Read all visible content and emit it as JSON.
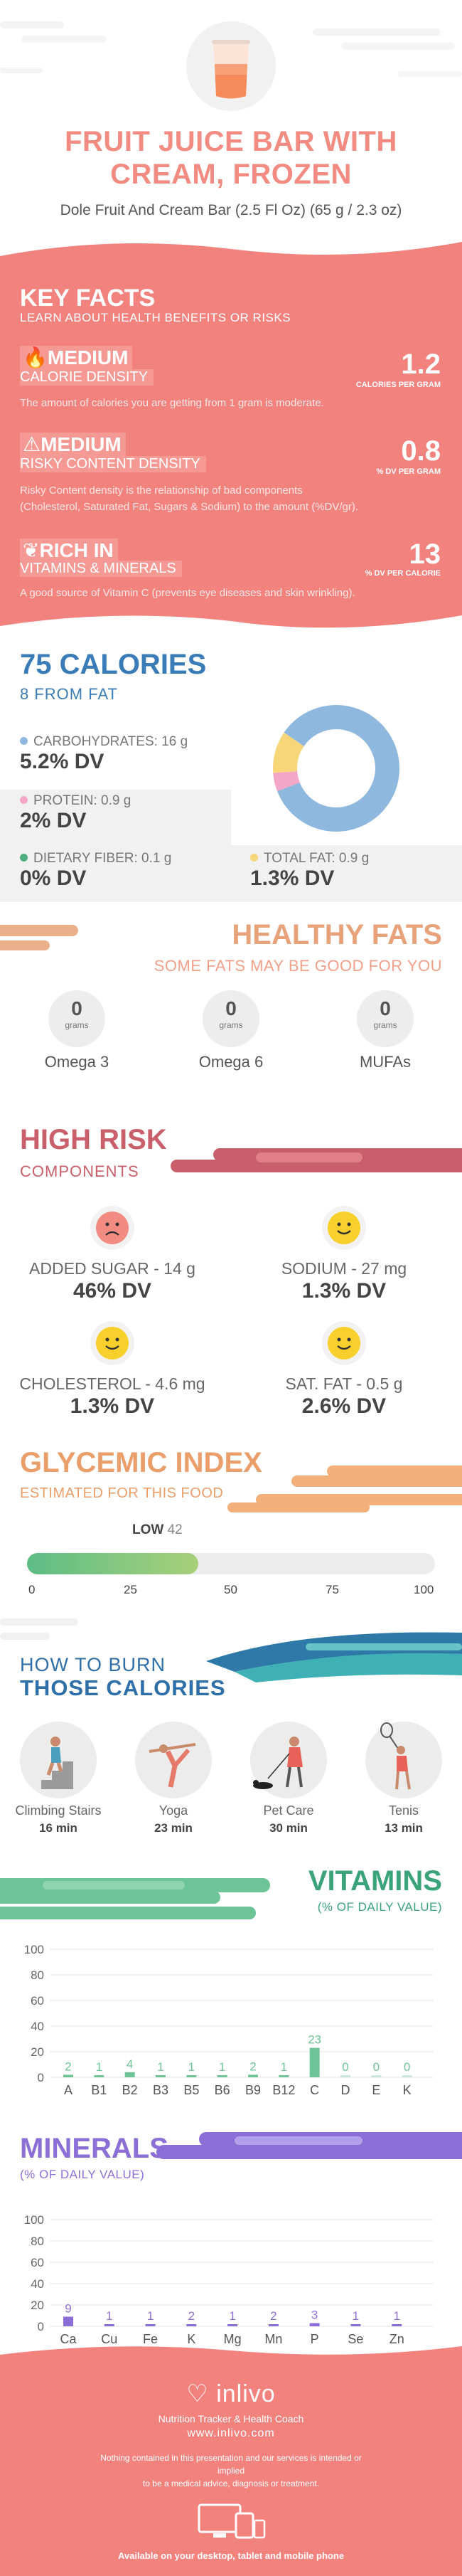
{
  "header": {
    "title_line1": "FRUIT JUICE BAR WITH",
    "title_line2": "CREAM, FROZEN",
    "subtitle": "Dole Fruit And Cream Bar (2.5 Fl Oz) (65 g / 2.3 oz)"
  },
  "key_facts": {
    "title": "KEY FACTS",
    "subtitle": "LEARN ABOUT HEALTH BENEFITS OR RISKS",
    "items": [
      {
        "level": "MEDIUM",
        "name": "CALORIE DENSITY",
        "value": "1.2",
        "unit": "CALORIES PER GRAM",
        "description": "The amount of calories you are getting from 1 gram is moderate.",
        "icon": "flame-icon"
      },
      {
        "level": "MEDIUM",
        "name": "RISKY CONTENT DENSITY",
        "value": "0.8",
        "unit": "% DV PER GRAM",
        "description_line1": "Risky Content density is the relationship of bad components",
        "description_line2": "(Cholesterol, Saturated Fat, Sugars & Sodium) to the amount (%DV/gr).",
        "icon": "warning-icon"
      },
      {
        "level": "RICH  IN",
        "name": "VITAMINS & MINERALS",
        "value": "13",
        "unit": "% DV PER CALORIE",
        "description": "A good source of Vitamin C (prevents eye diseases and skin wrinkling).",
        "icon": "leaf-icon"
      }
    ]
  },
  "calories": {
    "title": "75 CALORIES",
    "subtitle": "8 FROM FAT",
    "nutrients": [
      {
        "label": "CARBOHYDRATES: 16 g",
        "dv": "5.2% DV",
        "color": "#8fb8de"
      },
      {
        "label": "PROTEIN: 0.9 g",
        "dv": "2% DV",
        "color": "#f4a6c6"
      },
      {
        "label": "DIETARY FIBER: 0.1 g",
        "dv": "0% DV",
        "color": "#4caf7d"
      },
      {
        "label": "TOTAL FAT: 0.9 g",
        "dv": "1.3% DV",
        "color": "#f7d67a"
      }
    ],
    "donut": {
      "carbs": 64,
      "protein": 3.6,
      "fat": 8.1,
      "colors": {
        "carbs": "#8fb8de",
        "protein": "#f4a6c6",
        "fat": "#f7d67a"
      }
    }
  },
  "healthy_fats": {
    "title": "HEALTHY FATS",
    "subtitle": "SOME FATS MAY BE GOOD FOR YOU",
    "items": [
      {
        "value": "0",
        "unit": "grams",
        "name": "Omega 3"
      },
      {
        "value": "0",
        "unit": "grams",
        "name": "Omega 6"
      },
      {
        "value": "0",
        "unit": "grams",
        "name": "MUFAs"
      }
    ]
  },
  "high_risk": {
    "title": "HIGH RISK",
    "subtitle": "COMPONENTS",
    "items": [
      {
        "name": "ADDED SUGAR - 14 g",
        "dv": "46% DV",
        "face": "sad-face-icon"
      },
      {
        "name": "SODIUM - 27 mg",
        "dv": "1.3% DV",
        "face": "smile-face-icon"
      },
      {
        "name": "CHOLESTEROL - 4.6 mg",
        "dv": "1.3% DV",
        "face": "smile-face-icon"
      },
      {
        "name": "SAT. FAT - 0.5 g",
        "dv": "2.6% DV",
        "face": "smile-face-icon"
      }
    ]
  },
  "glycemic": {
    "title": "GLYCEMIC INDEX",
    "subtitle": "ESTIMATED FOR THIS FOOD",
    "level": "LOW",
    "value": 42,
    "value_text": "42",
    "ticks": [
      "0",
      "25",
      "50",
      "75",
      "100"
    ]
  },
  "burn": {
    "title1": "HOW TO BURN",
    "title2": "THOSE CALORIES",
    "activities": [
      {
        "name": "Climbing Stairs",
        "time": "16 min",
        "icon": "stairs-climber-icon"
      },
      {
        "name": "Yoga",
        "time": "23 min",
        "icon": "yoga-icon"
      },
      {
        "name": "Pet Care",
        "time": "30 min",
        "icon": "dog-walker-icon"
      },
      {
        "name": "Tenis",
        "time": "13 min",
        "icon": "tennis-player-icon"
      }
    ]
  },
  "vitamins": {
    "title": "VITAMINS",
    "subtitle": "(% OF DAILY VALUE)"
  },
  "minerals": {
    "title": "MINERALS",
    "subtitle": "(% OF DAILY VALUE)"
  },
  "chart_data": [
    {
      "type": "bar",
      "categories": [
        "A",
        "B1",
        "B2",
        "B3",
        "B5",
        "B6",
        "B9",
        "B12",
        "C",
        "D",
        "E",
        "K"
      ],
      "values": [
        2,
        1,
        4,
        1,
        1,
        1,
        2,
        1,
        23,
        0,
        0,
        0
      ],
      "ylim": [
        0,
        100
      ],
      "yticks": [
        0,
        20,
        40,
        60,
        80,
        100
      ],
      "color": "#6cc497",
      "grid": true
    },
    {
      "type": "bar",
      "categories": [
        "Ca",
        "Cu",
        "Fe",
        "K",
        "Mg",
        "Mn",
        "P",
        "Se",
        "Zn"
      ],
      "values": [
        9,
        1,
        1,
        2,
        1,
        2,
        3,
        1,
        1
      ],
      "ylim": [
        0,
        100
      ],
      "yticks": [
        0,
        20,
        40,
        60,
        80,
        100
      ],
      "color": "#8c6fd6",
      "grid": true
    }
  ],
  "footer": {
    "brand": "inlivo",
    "tagline": "Nutrition Tracker & Health Coach",
    "url": "www.inlivo.com",
    "disclaimer_line1": "Nothing contained in this presentation and our services is intended or implied",
    "disclaimer_line2": "to be a medical advice, diagnosis or treatment.",
    "available": "Available on your desktop, tablet and mobile phone"
  },
  "colors": {
    "salmon": "#f2827e",
    "blue": "#3a7cb8",
    "green": "#3aa37a",
    "purple": "#8c6fd6",
    "orange": "#ea9f6a",
    "red": "#c85f6a"
  }
}
